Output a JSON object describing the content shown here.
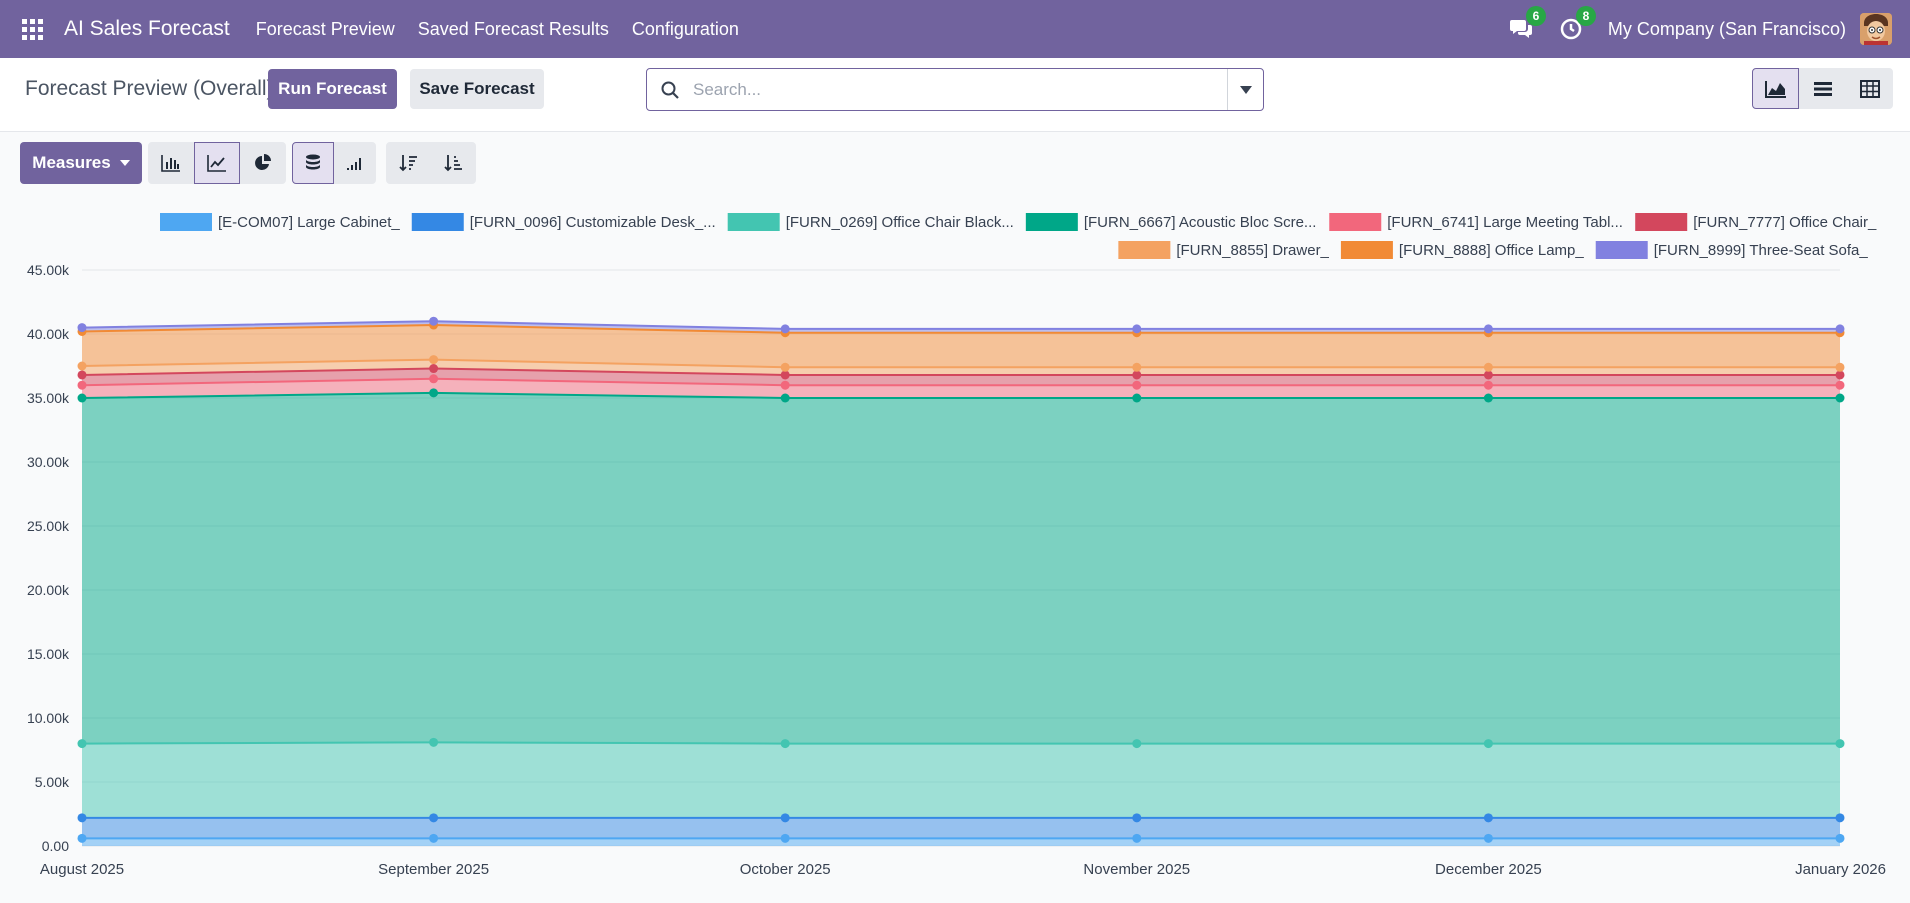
{
  "app": {
    "title": "AI Sales Forecast",
    "menu": [
      "Forecast Preview",
      "Saved Forecast Results",
      "Configuration"
    ],
    "messages_count": "6",
    "activities_count": "8",
    "company": "My Company (San Francisco)"
  },
  "control": {
    "title": "Forecast Preview (Overall)",
    "run_label": "Run Forecast",
    "save_label": "Save Forecast",
    "search_placeholder": "Search..."
  },
  "toolbar": {
    "measures_label": "Measures"
  },
  "colors": {
    "accent": "#71639e",
    "series": [
      "#4ea7f2",
      "#3488e4",
      "#43c5b1",
      "#00a788",
      "#f2677c",
      "#d3475d",
      "#f4a261",
      "#f18a35",
      "#8181e0"
    ]
  },
  "chart_data": {
    "type": "area",
    "stacked": true,
    "grid": true,
    "legend_position": "top-right",
    "categories": [
      "August 2025",
      "September 2025",
      "October 2025",
      "November 2025",
      "December 2025",
      "January 2026"
    ],
    "yticks": [
      "0.00",
      "5.00k",
      "10.00k",
      "15.00k",
      "20.00k",
      "25.00k",
      "30.00k",
      "35.00k",
      "40.00k",
      "45.00k"
    ],
    "ylim": [
      0,
      45000
    ],
    "series": [
      {
        "name": "[E-COM07] Large Cabinet_",
        "values": [
          600,
          600,
          600,
          600,
          600,
          600
        ]
      },
      {
        "name": "[FURN_0096] Customizable Desk_...",
        "values": [
          1600,
          1600,
          1600,
          1600,
          1600,
          1600
        ]
      },
      {
        "name": "[FURN_0269] Office Chair Black...",
        "values": [
          5800,
          5900,
          5800,
          5800,
          5800,
          5800
        ]
      },
      {
        "name": "[FURN_6667] Acoustic Bloc Scre...",
        "values": [
          27000,
          27300,
          27000,
          27000,
          27000,
          27000
        ]
      },
      {
        "name": "[FURN_6741] Large Meeting Tabl...",
        "values": [
          1000,
          1100,
          1000,
          1000,
          1000,
          1000
        ]
      },
      {
        "name": "[FURN_7777] Office Chair_",
        "values": [
          800,
          800,
          800,
          800,
          800,
          800
        ]
      },
      {
        "name": "[FURN_8855] Drawer_",
        "values": [
          700,
          700,
          600,
          600,
          600,
          600
        ]
      },
      {
        "name": "[FURN_8888] Office Lamp_",
        "values": [
          2700,
          2700,
          2700,
          2700,
          2700,
          2700
        ]
      },
      {
        "name": "[FURN_8999] Three-Seat Sofa_",
        "values": [
          300,
          300,
          300,
          300,
          300,
          300
        ]
      }
    ]
  }
}
